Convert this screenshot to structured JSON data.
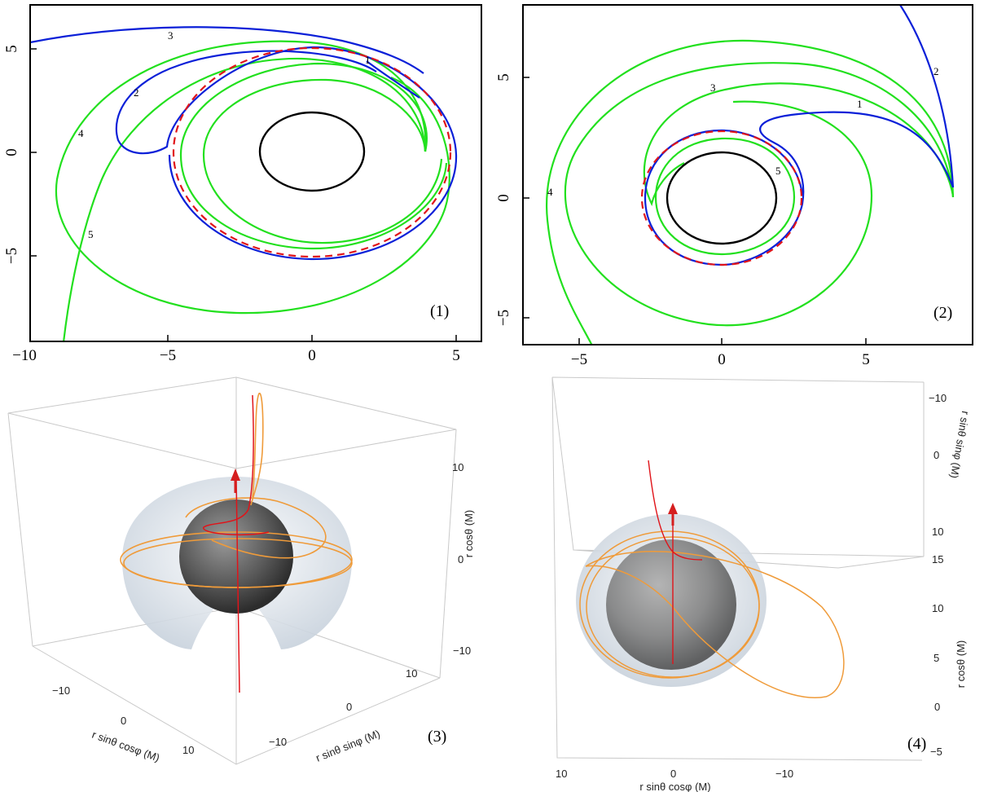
{
  "colors": {
    "blue": "#0b20d8",
    "green": "#22e01e",
    "red": "#e0141a",
    "black": "#000000",
    "orange": "#ef9b3a",
    "darkred": "#d51f1f",
    "sphere": "#555555",
    "shell": "#dfe6ee"
  },
  "panel1": {
    "label": "(1)",
    "x_ticks": [
      "−10",
      "−5",
      "0",
      "5"
    ],
    "y_ticks": [
      "5",
      "0",
      "−5"
    ],
    "curve_labels": [
      "1",
      "2",
      "3",
      "4",
      "5"
    ]
  },
  "panel2": {
    "label": "(2)",
    "x_ticks": [
      "−5",
      "0",
      "5"
    ],
    "y_ticks": [
      "5",
      "0",
      "−5"
    ],
    "curve_labels": [
      "1",
      "2",
      "3",
      "4",
      "5"
    ]
  },
  "panel3": {
    "label": "(3)",
    "z_label": "r cosθ (M)",
    "z_ticks": [
      "10",
      "0",
      "−10"
    ],
    "x_label": "r sinθ cosφ (M)",
    "x_ticks": [
      "−10",
      "0",
      "10"
    ],
    "y_label": "r sinθ sinφ (M)",
    "y_ticks": [
      "10",
      "0",
      "−10"
    ]
  },
  "panel4": {
    "label": "(4)",
    "x_label": "r sinθ cosφ (M)",
    "x_ticks": [
      "10",
      "0",
      "−10"
    ],
    "y_label": "r sinθ sinφ (M)",
    "y_ticks": [
      "−10",
      "0",
      "10"
    ],
    "z_label": "r cosθ (M)",
    "z_ticks": [
      "15",
      "10",
      "5",
      "0",
      "−5"
    ]
  }
}
